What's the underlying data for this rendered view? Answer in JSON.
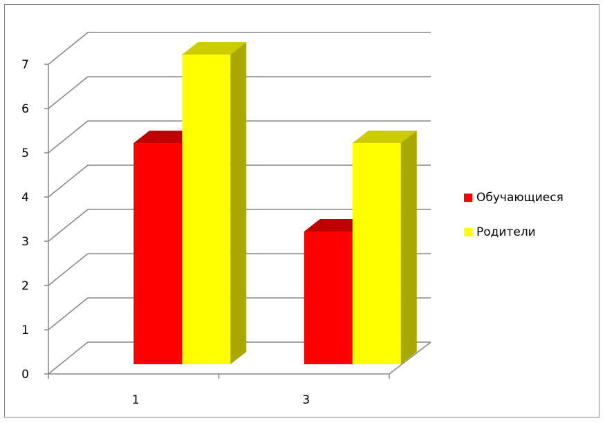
{
  "chart_data": {
    "type": "bar",
    "style": "3d-clustered-column",
    "categories": [
      "1",
      "3"
    ],
    "series": [
      {
        "name": "Обучающиеся",
        "values": [
          5,
          3
        ],
        "color": "#ff0000",
        "top_color": "#c00000",
        "side_color": "#a00000"
      },
      {
        "name": "Родители",
        "values": [
          7,
          5
        ],
        "color": "#ffff00",
        "top_color": "#cccc00",
        "side_color": "#a8a800"
      }
    ],
    "ylim": [
      0,
      7
    ],
    "yticks": [
      "0",
      "1",
      "2",
      "3",
      "4",
      "5",
      "6",
      "7"
    ],
    "title": "",
    "xlabel": "",
    "ylabel": "",
    "grid": true,
    "legend_position": "right",
    "colors": {
      "grid": "#868686",
      "axis": "#868686",
      "border": "#868686"
    }
  }
}
